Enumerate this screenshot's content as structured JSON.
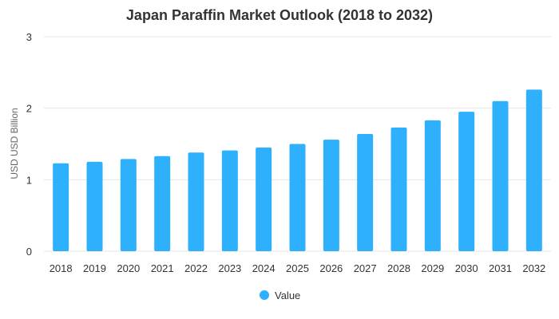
{
  "chart_data": {
    "type": "bar",
    "title": "Japan Paraffin Market Outlook (2018 to 2032)",
    "xlabel": "",
    "ylabel": "USD USD Billion",
    "ylim": [
      0,
      3
    ],
    "yticks": [
      0,
      1,
      2,
      3
    ],
    "grid": true,
    "legend_position": "bottom-center",
    "categories": [
      "2018",
      "2019",
      "2020",
      "2021",
      "2022",
      "2023",
      "2024",
      "2025",
      "2026",
      "2027",
      "2028",
      "2029",
      "2030",
      "2031",
      "2032"
    ],
    "series": [
      {
        "name": "Value",
        "color": "#2eb0fc",
        "values": [
          1.23,
          1.25,
          1.29,
          1.33,
          1.38,
          1.41,
          1.45,
          1.5,
          1.56,
          1.64,
          1.73,
          1.83,
          1.95,
          2.1,
          2.26
        ]
      }
    ]
  }
}
